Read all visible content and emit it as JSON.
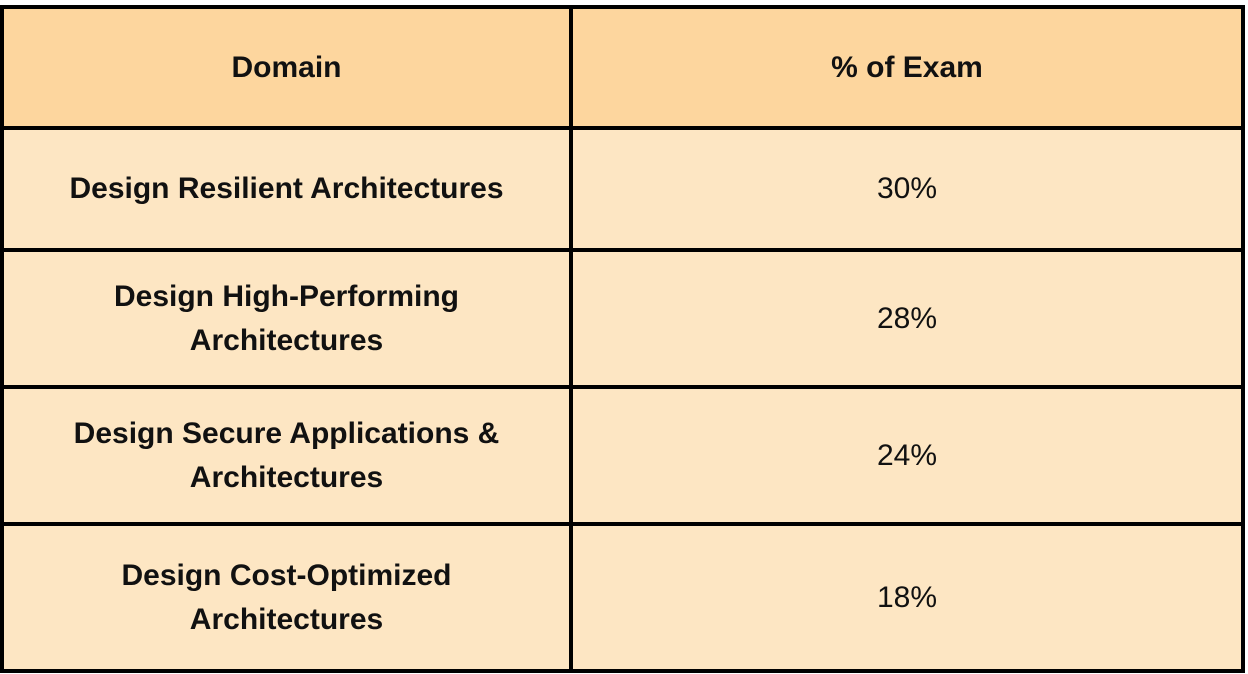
{
  "table": {
    "headers": [
      "Domain",
      "% of Exam"
    ],
    "rows": [
      {
        "domain": "Design Resilient Architectures",
        "percent": "30%"
      },
      {
        "domain": "Design High-Performing Architectures",
        "percent": "28%"
      },
      {
        "domain": "Design Secure Applications & Architectures",
        "percent": "24%"
      },
      {
        "domain": "Design Cost-Optimized Architectures",
        "percent": "18%"
      }
    ]
  },
  "colors": {
    "header_bg": "#fdd69e",
    "row_bg": "#fde6c3",
    "border": "#000000"
  }
}
